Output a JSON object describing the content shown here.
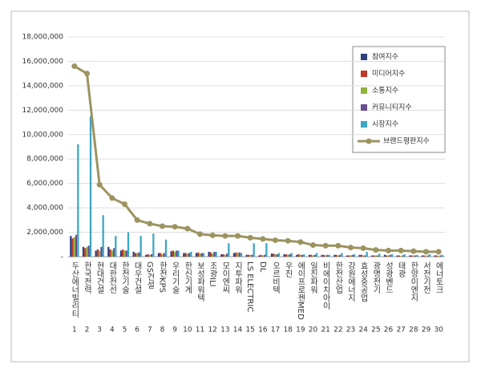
{
  "chart_data": {
    "type": "bar",
    "categories": [
      "두산에너빌리티",
      "한국전력",
      "현대건설",
      "대한전선",
      "한전기술",
      "대우건설",
      "GS건설",
      "한전KPS",
      "우리기술",
      "한신기계",
      "보성파워텍",
      "조광ILI",
      "모이엔씨",
      "지투파워",
      "LS ELECTRIC",
      "DL",
      "오르비텍",
      "우진",
      "에이프로젠MED",
      "일진파워",
      "비에이치아이",
      "한전산업",
      "강원에너지",
      "효성중공업",
      "광명전기",
      "성광벤드",
      "태광",
      "한양이엔지",
      "서전기전",
      "에너토크"
    ],
    "ranks": [
      1,
      2,
      3,
      4,
      5,
      6,
      7,
      8,
      9,
      10,
      11,
      12,
      13,
      14,
      15,
      16,
      17,
      18,
      19,
      20,
      21,
      22,
      23,
      24,
      25,
      26,
      27,
      28,
      29,
      30
    ],
    "series": [
      {
        "name": "참여지수",
        "color": "#2f3f7f",
        "values": [
          1700000,
          800000,
          500000,
          800000,
          500000,
          400000,
          150000,
          300000,
          450000,
          300000,
          300000,
          400000,
          200000,
          300000,
          150000,
          100000,
          250000,
          200000,
          150000,
          150000,
          150000,
          150000,
          100000,
          150000,
          100000,
          150000,
          100000,
          100000,
          100000,
          100000
        ]
      },
      {
        "name": "미디어지수",
        "color": "#c0392b",
        "values": [
          1500000,
          700000,
          600000,
          600000,
          600000,
          300000,
          200000,
          300000,
          500000,
          300000,
          350000,
          350000,
          200000,
          350000,
          150000,
          150000,
          250000,
          200000,
          200000,
          150000,
          150000,
          150000,
          100000,
          150000,
          100000,
          100000,
          100000,
          100000,
          100000,
          100000
        ]
      },
      {
        "name": "소통지수",
        "color": "#8db33a",
        "values": [
          1600000,
          800000,
          500000,
          500000,
          500000,
          300000,
          150000,
          200000,
          400000,
          250000,
          250000,
          250000,
          150000,
          300000,
          150000,
          100000,
          200000,
          150000,
          150000,
          100000,
          100000,
          100000,
          100000,
          100000,
          100000,
          100000,
          50000,
          100000,
          50000,
          50000
        ]
      },
      {
        "name": "커뮤니티지수",
        "color": "#6a4c93",
        "values": [
          1800000,
          900000,
          800000,
          700000,
          500000,
          350000,
          200000,
          300000,
          500000,
          300000,
          300000,
          400000,
          250000,
          350000,
          150000,
          150000,
          200000,
          200000,
          150000,
          150000,
          150000,
          150000,
          150000,
          100000,
          100000,
          150000,
          100000,
          100000,
          100000,
          100000
        ]
      },
      {
        "name": "시장지수",
        "color": "#3aa6c4",
        "values": [
          9200000,
          11500000,
          3400000,
          1700000,
          2000000,
          1700000,
          1900000,
          1400000,
          500000,
          400000,
          300000,
          400000,
          1100000,
          300000,
          1100000,
          1100000,
          300000,
          300000,
          200000,
          300000,
          150000,
          300000,
          200000,
          400000,
          250000,
          200000,
          200000,
          150000,
          200000,
          150000
        ]
      }
    ],
    "line_series": {
      "name": "브랜드평판지수",
      "color": "#9c9360",
      "values": [
        15600000,
        15000000,
        5900000,
        4800000,
        4300000,
        3000000,
        2700000,
        2500000,
        2450000,
        2300000,
        1850000,
        1750000,
        1700000,
        1700000,
        1550000,
        1450000,
        1350000,
        1300000,
        1200000,
        950000,
        900000,
        900000,
        750000,
        700000,
        550000,
        500000,
        500000,
        450000,
        400000,
        400000
      ]
    },
    "ylim": [
      0,
      18000000
    ],
    "yticks": [
      {
        "value": 0,
        "label": "-"
      },
      {
        "value": 2000000,
        "label": "2,000,000"
      },
      {
        "value": 4000000,
        "label": "4,000,000"
      },
      {
        "value": 6000000,
        "label": "6,000,000"
      },
      {
        "value": 8000000,
        "label": "8,000,000"
      },
      {
        "value": 10000000,
        "label": "10,000,000"
      },
      {
        "value": 12000000,
        "label": "12,000,000"
      },
      {
        "value": 14000000,
        "label": "14,000,000"
      },
      {
        "value": 16000000,
        "label": "16,000,000"
      },
      {
        "value": 18000000,
        "label": "18,000,000"
      }
    ],
    "grid": true
  }
}
